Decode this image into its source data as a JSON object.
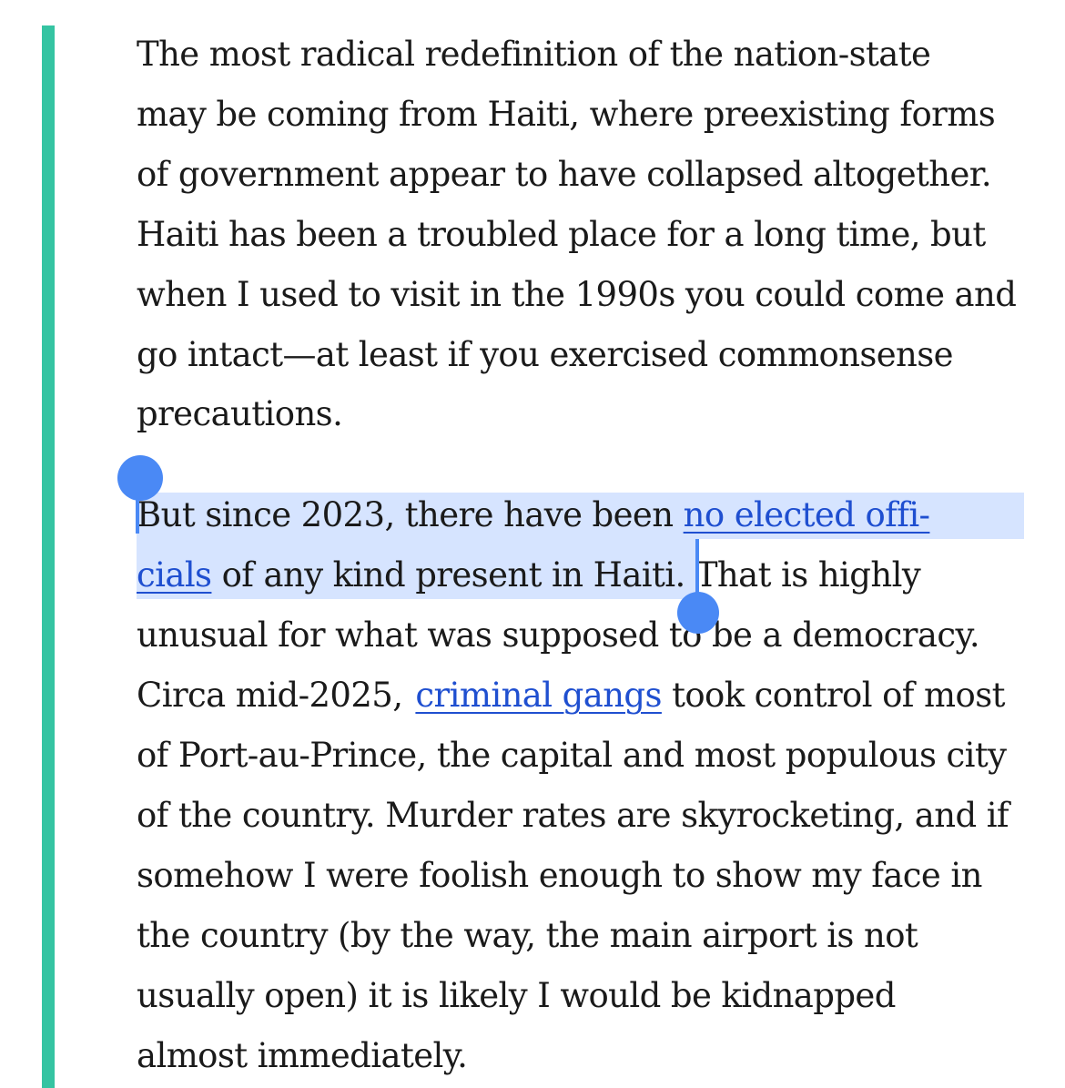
{
  "paragraph1": {
    "lines": [
      "The most radical redefinition of the nation-state",
      "may be coming from Haiti, where preexisting forms",
      "of government appear to have collapsed altogether.",
      "Haiti has been a troubled place for a long time, but",
      "when I used to visit in the 1990s you could come and",
      "go intact—at least if you exercised commonsense",
      "precautions."
    ]
  },
  "paragraph2": {
    "line1_pre": "But since 2023, there have been ",
    "link1_part1": "no elected offi-",
    "link1_part2": "cials",
    "line2_post": " of any kind present in Haiti. That is highly",
    "line3": "unusual for what was supposed to be a democracy.",
    "line4_pre": "Circa mid-2025,",
    "link2": "criminal gangs",
    "line4_post": " took control of most",
    "rest_lines": [
      "of Port-au-Prince, the capital and most populous city",
      "of the country. Murder rates are skyrocketing, and if",
      "somehow I were foolish enough to show my face in",
      "the country (by the way, the main airport is not",
      "usually open) it is likely I would be kidnapped",
      "almost immediately."
    ]
  },
  "colors": {
    "quote_bar": "#35c4a2",
    "selection_highlight": "#d6e4ff",
    "selection_handle": "#4a89f5",
    "link": "#1f4fd0"
  }
}
